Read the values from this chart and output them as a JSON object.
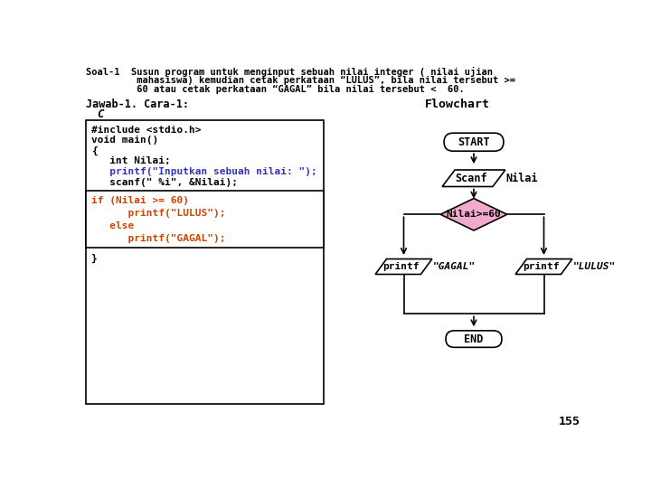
{
  "bg_color": "#ffffff",
  "title_lines": [
    "Soal-1  Susun program untuk menginput sebuah nilai integer ( nilai ujian",
    "         mahasiswa) kemudian cetak perkataan “LULUS”, bila nilai tersebut >=",
    "         60 atau cetak perkataan “GAGAL” bila nilai tersebut <  60."
  ],
  "jawab_text": "Jawab-1. Cara-1:",
  "c_label": "C",
  "flowchart_label": "Flowchart",
  "code_lines_top": [
    [
      "#include <stdio.h>",
      "black"
    ],
    [
      "void main()",
      "black"
    ],
    [
      "{",
      "black"
    ],
    [
      "   int Nilai;",
      "black"
    ],
    [
      "   printf(\"Inputkan sebuah nilai: \");",
      "blue"
    ],
    [
      "   scanf(\" %i\", &Nilai);",
      "black"
    ]
  ],
  "code_lines_ifelse": [
    [
      "if (Nilai >= 60)",
      "red"
    ],
    [
      "      printf(\"LULUS\");",
      "red"
    ],
    [
      "   else",
      "red"
    ],
    [
      "      printf(\"GAGAL\");",
      "red"
    ]
  ],
  "code_closing": [
    "}",
    "black"
  ],
  "color_black": "#000000",
  "color_blue": "#3333bb",
  "color_red": "#cc4400",
  "page_number": "155",
  "fc_start": "START",
  "fc_scanf": "Scanf",
  "fc_nilai": "Nilai",
  "fc_decision": "Nilai>=60",
  "fc_decision_color": "#f0aacc",
  "fc_left_label1": "printf",
  "fc_left_label2": "\"GAGAL\"",
  "fc_right_label1": "printf",
  "fc_right_label2": "\"LULUS\"",
  "fc_end": "END"
}
